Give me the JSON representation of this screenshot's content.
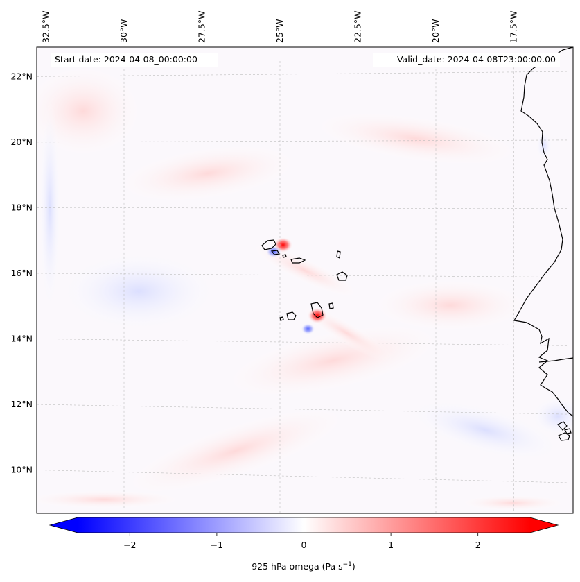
{
  "map": {
    "start_label": "Start date: 2024-04-08_00:00:00",
    "valid_label": "Valid_date: 2024-04-08T23:00:00.00",
    "longitude_labels": [
      {
        "lon": -32.5,
        "text": "32.5°W"
      },
      {
        "lon": -30.0,
        "text": "30°W"
      },
      {
        "lon": -27.5,
        "text": "27.5°W"
      },
      {
        "lon": -25.0,
        "text": "25°W"
      },
      {
        "lon": -22.5,
        "text": "22.5°W"
      },
      {
        "lon": -20.0,
        "text": "20°W"
      },
      {
        "lon": -17.5,
        "text": "17.5°W"
      }
    ],
    "latitude_labels": [
      {
        "lat": 22,
        "text": "22°N"
      },
      {
        "lat": 20,
        "text": "20°N"
      },
      {
        "lat": 18,
        "text": "18°N"
      },
      {
        "lat": 16,
        "text": "16°N"
      },
      {
        "lat": 14,
        "text": "14°N"
      },
      {
        "lat": 12,
        "text": "12°N"
      },
      {
        "lat": 10,
        "text": "10°N"
      }
    ],
    "lon_range": [
      -32.8,
      -15.6
    ],
    "lat_range": [
      8.9,
      22.8
    ],
    "gridlines": "dashed-gray"
  },
  "colorbar": {
    "label_main": "925 hPa omega (Pa s",
    "label_exp": "−1",
    "label_close": ")",
    "range": [
      -2.6,
      2.6
    ],
    "colormap": "bwr",
    "colors": {
      "negative": "#0000ff",
      "zero": "#ffffff",
      "positive": "#ff0000"
    },
    "ticks": [
      {
        "value": -2,
        "text": "−2"
      },
      {
        "value": -1,
        "text": "−1"
      },
      {
        "value": 0,
        "text": "0"
      },
      {
        "value": 1,
        "text": "1"
      },
      {
        "value": 2,
        "text": "2"
      }
    ],
    "extend": "both"
  },
  "features": {
    "coastline_color": "#000000",
    "anomalies": [
      {
        "lon": -24.9,
        "lat": 16.9,
        "value": 2.3
      },
      {
        "lon": -25.2,
        "lat": 16.7,
        "value": -1.5
      },
      {
        "lon": -23.8,
        "lat": 14.8,
        "value": 2.4
      },
      {
        "lon": -24.1,
        "lat": 14.4,
        "value": -1.2
      }
    ]
  }
}
